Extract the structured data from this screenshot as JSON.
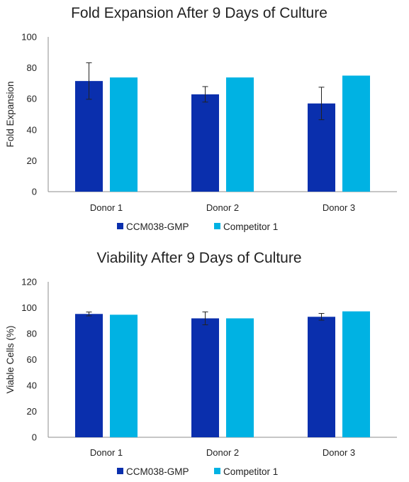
{
  "colors": {
    "series1": "#0a2fad",
    "series2": "#00b2e3",
    "axis": "#8c8c8c",
    "error": "#222222"
  },
  "chart_data": [
    {
      "type": "bar",
      "title": "Fold Expansion After 9 Days of Culture",
      "xlabel": "",
      "ylabel": "Fold Expansion",
      "ylim": [
        0,
        100
      ],
      "yticks": [
        0,
        20,
        40,
        60,
        80,
        100
      ],
      "categories": [
        "Donor 1",
        "Donor 2",
        "Donor 3"
      ],
      "series": [
        {
          "name": "CCM038-GMP",
          "values": [
            71.5,
            62.9,
            57.0
          ],
          "error": [
            11.8,
            5.0,
            10.5
          ]
        },
        {
          "name": "Competitor 1",
          "values": [
            73.8,
            73.8,
            75.0
          ]
        }
      ],
      "legend": "bottom",
      "grid": false
    },
    {
      "type": "bar",
      "title": "Viability After 9 Days of Culture",
      "xlabel": "",
      "ylabel": "Viable Cells (%)",
      "ylim": [
        0,
        120
      ],
      "yticks": [
        0,
        20,
        40,
        60,
        80,
        100,
        120
      ],
      "categories": [
        "Donor 1",
        "Donor 2",
        "Donor 3"
      ],
      "series": [
        {
          "name": "CCM038-GMP",
          "values": [
            95.2,
            91.8,
            93.0
          ],
          "error": [
            1.5,
            5.0,
            2.6
          ]
        },
        {
          "name": "Competitor 1",
          "values": [
            94.6,
            91.8,
            97.2
          ]
        }
      ],
      "legend": "bottom",
      "grid": false
    }
  ]
}
